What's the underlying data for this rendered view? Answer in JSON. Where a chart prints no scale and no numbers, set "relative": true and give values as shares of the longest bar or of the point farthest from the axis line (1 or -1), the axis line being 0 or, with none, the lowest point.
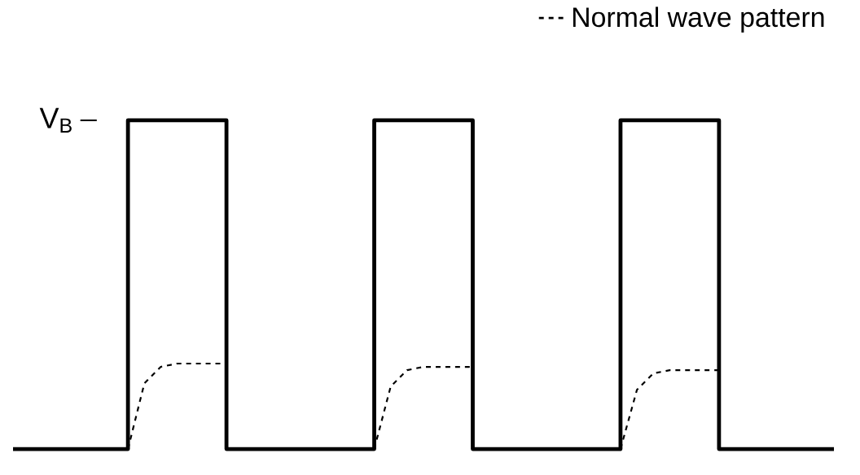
{
  "chart_data": {
    "type": "step",
    "relative": true,
    "legend": "top right",
    "categories": [
      null,
      null,
      null,
      null,
      null,
      null,
      null,
      null,
      null,
      null,
      null,
      null,
      null,
      null,
      null,
      null,
      null,
      null,
      null,
      null,
      null,
      null,
      null,
      null,
      null,
      null,
      null,
      null,
      null,
      null,
      null,
      null,
      null,
      null,
      null,
      null,
      null,
      null,
      null,
      null,
      null,
      null,
      null,
      null,
      null,
      null,
      null,
      null,
      null,
      null,
      null
    ],
    "annotations": [
      "V$_{B}$"
    ],
    "series": [
      {
        "color": "#000000",
        "line_style": "solid",
        "values": [
          0,
          0,
          0,
          0,
          0,
          0,
          0,
          1,
          1,
          1,
          1,
          1,
          1,
          0,
          0,
          0,
          0,
          0,
          0,
          0,
          0,
          0,
          1,
          1,
          1,
          1,
          1,
          1,
          0,
          0,
          0,
          0,
          0,
          0,
          0,
          0,
          0,
          1,
          1,
          1,
          1,
          1,
          1,
          0,
          0,
          0,
          0,
          0,
          0,
          0,
          0
        ]
      },
      {
        "type": "line",
        "name": "Normal wave pattern",
        "color": "#000000",
        "line_style": "dashed",
        "values": [
          null,
          null,
          null,
          null,
          null,
          null,
          null,
          0,
          0.2,
          0.25,
          0.26,
          0.26,
          0.26,
          0.26,
          null,
          null,
          null,
          null,
          null,
          null,
          null,
          null,
          0,
          0.19,
          0.24,
          0.25,
          0.25,
          0.25,
          0.25,
          null,
          null,
          null,
          null,
          null,
          null,
          null,
          null,
          0,
          0.18,
          0.23,
          0.24,
          0.24,
          0.24,
          0.24,
          null,
          null,
          null,
          null,
          null,
          null,
          null
        ]
      }
    ]
  }
}
